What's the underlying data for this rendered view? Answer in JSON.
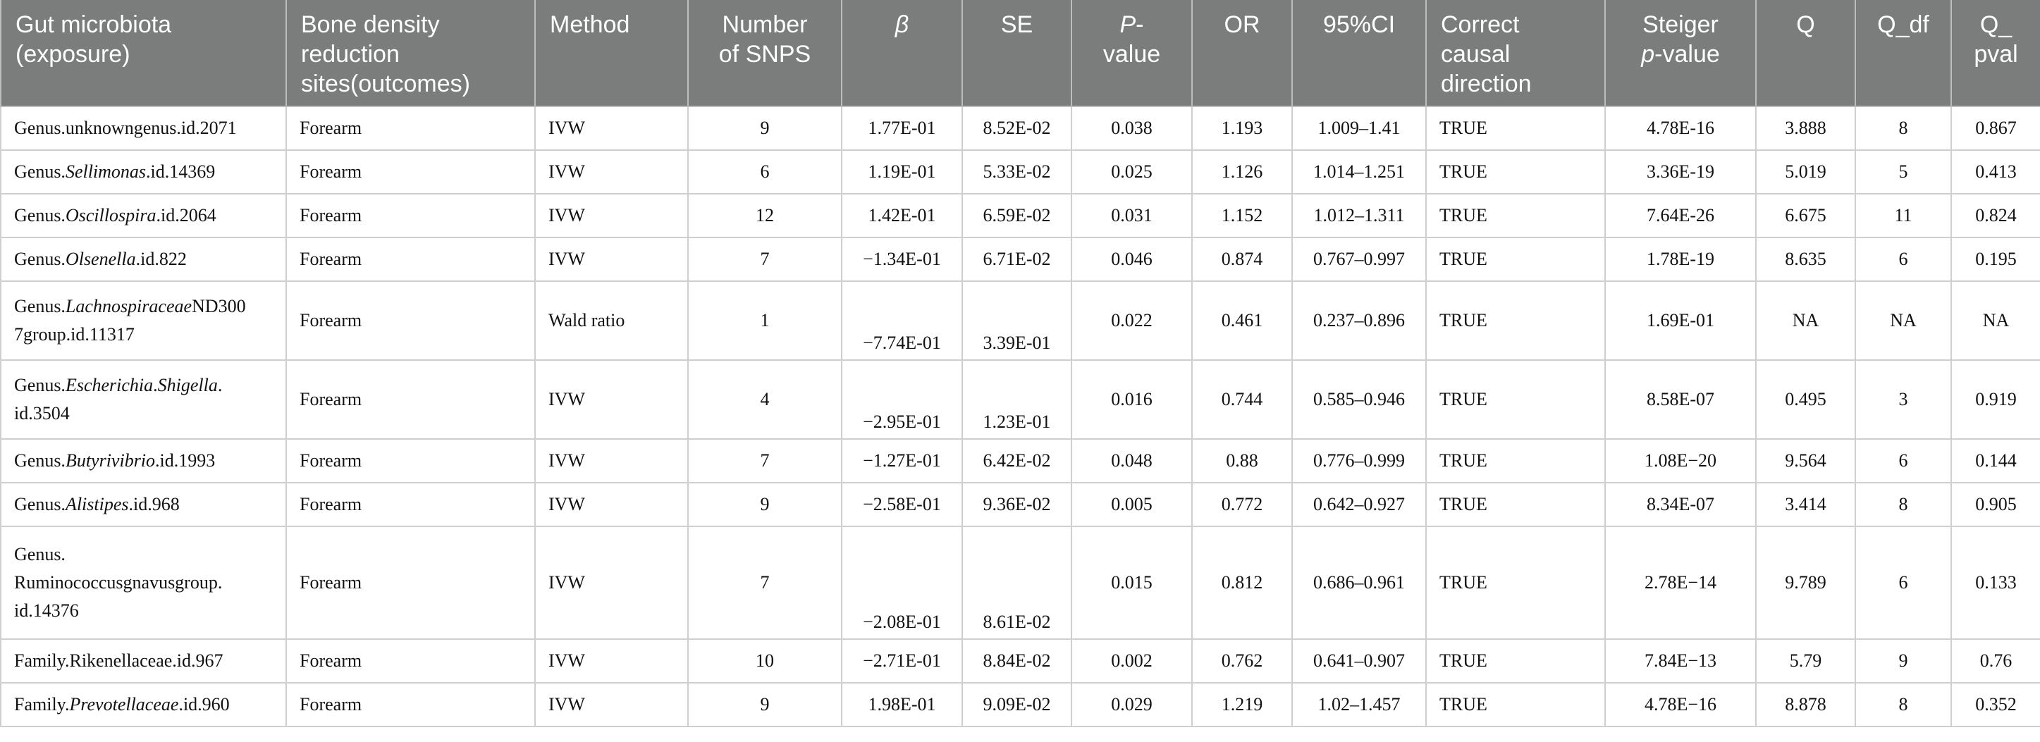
{
  "table": {
    "headers": [
      {
        "html": "Gut microbiota<br>(exposure)"
      },
      {
        "html": "Bone density<br>reduction<br>sites(outcomes)"
      },
      {
        "html": "Method"
      },
      {
        "html": "Number<br>of SNPS"
      },
      {
        "html": "<i>β</i>"
      },
      {
        "html": "SE"
      },
      {
        "html": "<i>P</i>-<br>value"
      },
      {
        "html": "OR"
      },
      {
        "html": "95%CI"
      },
      {
        "html": "Correct<br>causal<br>direction"
      },
      {
        "html": "Steiger<br><i>p</i>-value"
      },
      {
        "html": "Q"
      },
      {
        "html": "Q_df"
      },
      {
        "html": "Q_<br>pval"
      }
    ],
    "rows": [
      {
        "height": 62,
        "cells": [
          "Genus.unknowngenus.id.2071",
          "Forearm",
          "IVW",
          "9",
          "1.77E-01",
          "8.52E-02",
          "0.038",
          "1.193",
          "1.009–1.41",
          "TRUE",
          "4.78E-16",
          "3.888",
          "8",
          "0.867"
        ]
      },
      {
        "height": 62,
        "cells": [
          "Genus.<i>Sellimonas</i>.id.14369",
          "Forearm",
          "IVW",
          "6",
          "1.19E-01",
          "5.33E-02",
          "0.025",
          "1.126",
          "1.014–1.251",
          "TRUE",
          "3.36E-19",
          "5.019",
          "5",
          "0.413"
        ]
      },
      {
        "height": 62,
        "cells": [
          "Genus.<i>Oscillospira</i>.id.2064",
          "Forearm",
          "IVW",
          "12",
          "1.42E-01",
          "6.59E-02",
          "0.031",
          "1.152",
          "1.012–1.311",
          "TRUE",
          "7.64E-26",
          "6.675",
          "11",
          "0.824"
        ]
      },
      {
        "height": 62,
        "cells": [
          "Genus.<i>Olsenella</i>.id.822",
          "Forearm",
          "IVW",
          "7",
          "−1.34E-01",
          "6.71E-02",
          "0.046",
          "0.874",
          "0.767–0.997",
          "TRUE",
          "1.78E-19",
          "8.635",
          "6",
          "0.195"
        ]
      },
      {
        "height": 112,
        "bottom": [
          4,
          5
        ],
        "cells": [
          "Genus.<i>Lachnospiraceae</i>ND300<br>7group.id.11317",
          "Forearm",
          "Wald ratio",
          "1",
          "−7.74E-01",
          "3.39E-01",
          "0.022",
          "0.461",
          "0.237–0.896",
          "TRUE",
          "1.69E-01",
          "NA",
          "NA",
          "NA"
        ]
      },
      {
        "height": 112,
        "bottom": [
          4,
          5
        ],
        "cells": [
          "Genus.<i>Escherichia</i>.<i>Shigella</i>.<br>id.3504",
          "Forearm",
          "IVW",
          "4",
          "−2.95E-01",
          "1.23E-01",
          "0.016",
          "0.744",
          "0.585–0.946",
          "TRUE",
          "8.58E-07",
          "0.495",
          "3",
          "0.919"
        ]
      },
      {
        "height": 62,
        "cells": [
          "Genus.<i>Butyrivibrio</i>.id.1993",
          "Forearm",
          "IVW",
          "7",
          "−1.27E-01",
          "6.42E-02",
          "0.048",
          "0.88",
          "0.776–0.999",
          "TRUE",
          "1.08E−20",
          "9.564",
          "6",
          "0.144"
        ]
      },
      {
        "height": 62,
        "cells": [
          "Genus.<i>Alistipes</i>.id.968",
          "Forearm",
          "IVW",
          "9",
          "−2.58E-01",
          "9.36E-02",
          "0.005",
          "0.772",
          "0.642–0.927",
          "TRUE",
          "8.34E-07",
          "3.414",
          "8",
          "0.905"
        ]
      },
      {
        "height": 160,
        "bottom": [
          4,
          5
        ],
        "cells": [
          "Genus.<br>Ruminococcusgnavusgroup.<br>id.14376",
          "Forearm",
          "IVW",
          "7",
          "−2.08E-01",
          "8.61E-02",
          "0.015",
          "0.812",
          "0.686–0.961",
          "TRUE",
          "2.78E−14",
          "9.789",
          "6",
          "0.133"
        ]
      },
      {
        "height": 62,
        "cells": [
          "Family.Rikenellaceae.id.967",
          "Forearm",
          "IVW",
          "10",
          "−2.71E-01",
          "8.84E-02",
          "0.002",
          "0.762",
          "0.641–0.907",
          "TRUE",
          "7.84E−13",
          "5.79",
          "9",
          "0.76"
        ]
      },
      {
        "height": 62,
        "cells": [
          "Family.<i>Prevotellaceae</i>.id.960",
          "Forearm",
          "IVW",
          "9",
          "1.98E-01",
          "9.09E-02",
          "0.029",
          "1.219",
          "1.02–1.457",
          "TRUE",
          "4.78E−16",
          "8.878",
          "8",
          "0.352"
        ]
      }
    ]
  }
}
